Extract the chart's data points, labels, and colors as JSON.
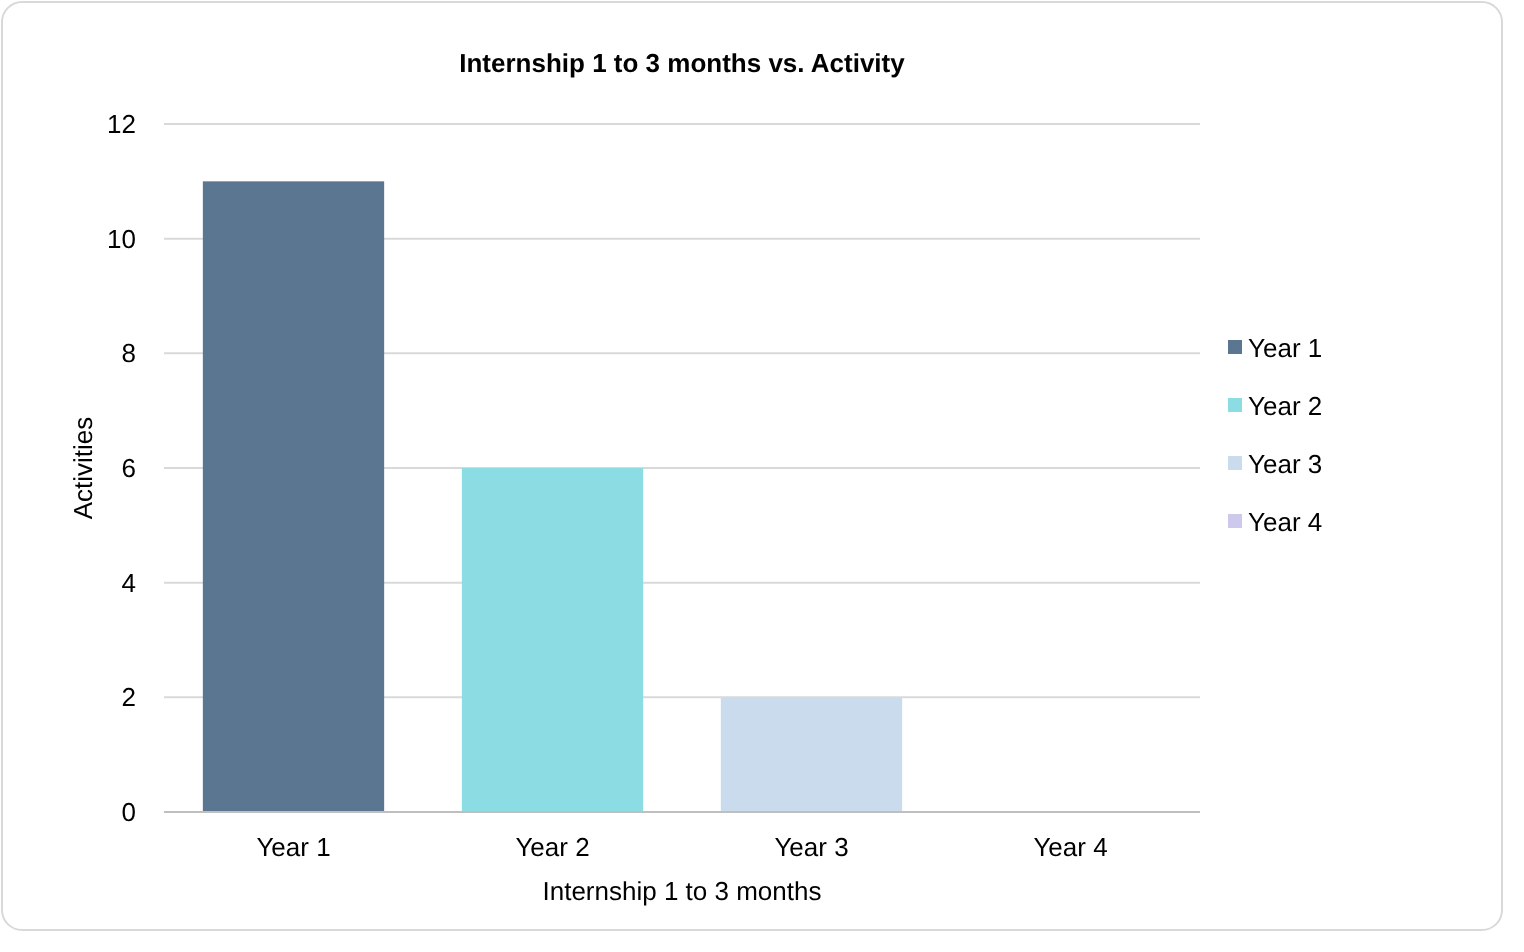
{
  "chart_data": {
    "type": "bar",
    "title": "Internship 1 to 3 months vs. Activity",
    "xlabel": "Internship 1 to 3 months",
    "ylabel": "Activities",
    "categories": [
      "Year 1",
      "Year 2",
      "Year 3",
      "Year 4"
    ],
    "series": [
      {
        "name": "Year 1",
        "color": "#5b7691",
        "values": [
          11,
          null,
          null,
          null
        ]
      },
      {
        "name": "Year 2",
        "color": "#8cdde3",
        "values": [
          null,
          6,
          null,
          null
        ]
      },
      {
        "name": "Year 3",
        "color": "#c9dbec",
        "values": [
          null,
          null,
          2,
          null
        ]
      },
      {
        "name": "Year 4",
        "color": "#cdc9ec",
        "values": [
          null,
          null,
          null,
          0
        ]
      }
    ],
    "stacked": true,
    "ylim": [
      0,
      12
    ],
    "yticks": [
      0,
      2,
      4,
      6,
      8,
      10,
      12
    ],
    "grid": "y",
    "legend": "right"
  }
}
